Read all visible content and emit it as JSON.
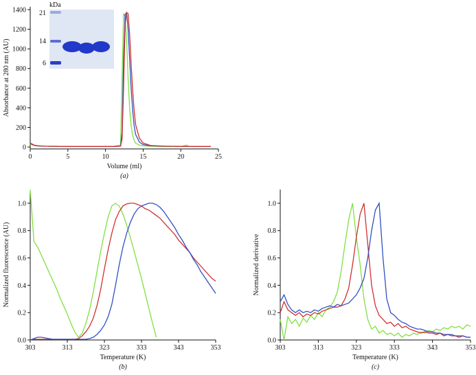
{
  "chart_data": [
    {
      "type": "line",
      "x_label": "Volume (ml)",
      "y_label": "Absorbance at 280 nm (AU)",
      "caption": "(a)",
      "xlim": [
        0,
        25
      ],
      "ylim": [
        -20,
        1430
      ],
      "xticks": [
        0,
        5,
        10,
        15,
        20,
        25
      ],
      "yticks": [
        0,
        200,
        400,
        600,
        800,
        1000,
        1200,
        1400
      ],
      "inset": {
        "unit_label": "kDa",
        "markers": [
          21,
          14,
          6
        ]
      },
      "x": [
        0,
        0.5,
        1,
        2,
        5,
        10,
        11,
        12,
        12.2,
        12.4,
        12.6,
        12.8,
        13,
        13.2,
        13.4,
        13.6,
        13.8,
        14,
        14.5,
        15,
        16,
        18,
        20,
        20.8,
        21,
        22,
        24
      ],
      "series": [
        {
          "name": "green",
          "color": "#80e040",
          "values": [
            30,
            15,
            10,
            8,
            5,
            5,
            5,
            20,
            700,
            1360,
            1330,
            1100,
            700,
            400,
            220,
            120,
            70,
            40,
            20,
            12,
            8,
            5,
            5,
            20,
            6,
            5,
            5
          ]
        },
        {
          "name": "blue",
          "color": "#3050c0",
          "values": [
            40,
            20,
            12,
            8,
            5,
            5,
            5,
            8,
            150,
            900,
            1350,
            1370,
            1200,
            900,
            600,
            380,
            220,
            130,
            50,
            25,
            12,
            8,
            6,
            6,
            6,
            5,
            5
          ]
        },
        {
          "name": "red",
          "color": "#d03030",
          "values": [
            35,
            18,
            12,
            8,
            5,
            5,
            5,
            8,
            80,
            600,
            1250,
            1370,
            1360,
            1150,
            850,
            580,
            380,
            230,
            90,
            40,
            15,
            8,
            6,
            6,
            6,
            5,
            5
          ]
        }
      ]
    },
    {
      "type": "line",
      "x_label": "Temperature (K)",
      "y_label": "Normalized fluorescence (AU)",
      "caption": "(b)",
      "xlim": [
        303,
        353
      ],
      "ylim": [
        0,
        1.1
      ],
      "xticks": [
        303,
        313,
        323,
        333,
        343,
        353
      ],
      "yticks": [
        {
          "value": 0,
          "label": "0.0"
        },
        0.2,
        0.4,
        0.6,
        0.8,
        {
          "value": 1,
          "label": "1.0"
        }
      ],
      "x": [
        303,
        304,
        305,
        306,
        307,
        308,
        309,
        310,
        311,
        312,
        313,
        314,
        315,
        316,
        317,
        318,
        319,
        320,
        321,
        322,
        323,
        324,
        325,
        326,
        327,
        328,
        329,
        330,
        331,
        332,
        333,
        334,
        335,
        336,
        337,
        338,
        339,
        340,
        341,
        342,
        343,
        344,
        345,
        346,
        347,
        348,
        349,
        350,
        351,
        352,
        353
      ],
      "series": [
        {
          "name": "green",
          "color": "#80e040",
          "values": [
            1.1,
            0.72,
            0.68,
            0.62,
            0.56,
            0.5,
            0.44,
            0.38,
            0.31,
            0.25,
            0.19,
            0.12,
            0.06,
            0.02,
            0.05,
            0.12,
            0.22,
            0.35,
            0.5,
            0.65,
            0.78,
            0.9,
            0.98,
            1.0,
            0.98,
            0.92,
            0.84,
            0.75,
            0.65,
            0.55,
            0.45,
            0.34,
            0.23,
            0.12,
            0.02,
            null,
            null,
            null,
            null,
            null,
            null,
            null,
            null,
            null,
            null,
            null,
            null,
            null,
            null,
            null,
            null
          ]
        },
        {
          "name": "red",
          "color": "#d03030",
          "values": [
            0.0,
            0.005,
            0.005,
            0.005,
            0.005,
            0.005,
            0.005,
            0.005,
            0.005,
            0.005,
            0.005,
            0.005,
            0.005,
            0.01,
            0.03,
            0.06,
            0.1,
            0.16,
            0.25,
            0.37,
            0.52,
            0.66,
            0.78,
            0.88,
            0.94,
            0.98,
            0.995,
            1.0,
            1.0,
            0.99,
            0.98,
            0.96,
            0.95,
            0.93,
            0.91,
            0.89,
            0.86,
            0.83,
            0.8,
            0.77,
            0.73,
            0.7,
            0.67,
            0.64,
            0.6,
            0.57,
            0.54,
            0.51,
            0.48,
            0.45,
            0.43
          ]
        },
        {
          "name": "blue",
          "color": "#3050c0",
          "values": [
            0.0,
            0.01,
            0.02,
            0.02,
            0.015,
            0.01,
            0.005,
            0.005,
            0.005,
            0.005,
            0.005,
            0.005,
            0.005,
            0.005,
            0.005,
            0.005,
            0.01,
            0.02,
            0.04,
            0.07,
            0.11,
            0.17,
            0.26,
            0.4,
            0.55,
            0.68,
            0.78,
            0.86,
            0.92,
            0.96,
            0.98,
            0.99,
            1.0,
            1.0,
            0.99,
            0.97,
            0.94,
            0.9,
            0.86,
            0.82,
            0.77,
            0.73,
            0.68,
            0.64,
            0.59,
            0.55,
            0.5,
            0.46,
            0.42,
            0.38,
            0.34
          ]
        }
      ]
    },
    {
      "type": "line",
      "x_label": "Temperature (K)",
      "y_label": "Normalized derivative",
      "caption": "(c)",
      "xlim": [
        303,
        353
      ],
      "ylim": [
        0,
        1.1
      ],
      "xticks": [
        303,
        313,
        323,
        333,
        343,
        353
      ],
      "yticks": [
        {
          "value": 0,
          "label": "0.0"
        },
        0.2,
        0.4,
        0.6,
        0.8,
        {
          "value": 1,
          "label": "1.0"
        }
      ],
      "x": [
        303,
        304,
        305,
        306,
        307,
        308,
        309,
        310,
        311,
        312,
        313,
        314,
        315,
        316,
        317,
        318,
        319,
        320,
        321,
        322,
        323,
        324,
        325,
        326,
        327,
        328,
        329,
        330,
        331,
        332,
        333,
        334,
        335,
        336,
        337,
        338,
        339,
        340,
        341,
        342,
        343,
        344,
        345,
        346,
        347,
        348,
        349,
        350,
        351,
        352,
        353
      ],
      "series": [
        {
          "name": "green",
          "color": "#80e040",
          "values": [
            0.15,
            0.0,
            0.17,
            0.12,
            0.15,
            0.1,
            0.16,
            0.13,
            0.18,
            0.15,
            0.2,
            0.17,
            0.22,
            0.24,
            0.28,
            0.35,
            0.5,
            0.7,
            0.88,
            1.0,
            0.75,
            0.55,
            0.3,
            0.15,
            0.08,
            0.1,
            0.05,
            0.07,
            0.04,
            0.05,
            0.03,
            0.05,
            0.02,
            0.04,
            0.03,
            0.05,
            0.04,
            0.06,
            0.05,
            0.07,
            0.06,
            0.08,
            0.07,
            0.09,
            0.08,
            0.1,
            0.09,
            0.1,
            0.08,
            0.11,
            0.1
          ]
        },
        {
          "name": "red",
          "color": "#d03030",
          "values": [
            0.2,
            0.28,
            0.22,
            0.2,
            0.18,
            0.2,
            0.17,
            0.19,
            0.18,
            0.2,
            0.19,
            0.21,
            0.22,
            0.23,
            0.24,
            0.24,
            0.25,
            0.3,
            0.38,
            0.55,
            0.75,
            0.92,
            1.0,
            0.7,
            0.4,
            0.25,
            0.18,
            0.15,
            0.12,
            0.13,
            0.1,
            0.12,
            0.09,
            0.1,
            0.08,
            0.07,
            0.06,
            0.05,
            0.06,
            0.05,
            0.05,
            0.04,
            0.05,
            0.03,
            0.04,
            0.03,
            0.03,
            0.02,
            0.03,
            0.02,
            0.02
          ]
        },
        {
          "name": "blue",
          "color": "#3050c0",
          "values": [
            0.28,
            0.33,
            0.26,
            0.22,
            0.2,
            0.22,
            0.2,
            0.21,
            0.2,
            0.22,
            0.21,
            0.23,
            0.24,
            0.25,
            0.24,
            0.26,
            0.25,
            0.26,
            0.27,
            0.3,
            0.33,
            0.38,
            0.45,
            0.6,
            0.8,
            0.95,
            1.0,
            0.6,
            0.3,
            0.2,
            0.18,
            0.15,
            0.13,
            0.12,
            0.1,
            0.09,
            0.08,
            0.08,
            0.07,
            0.06,
            0.06,
            0.05,
            0.05,
            0.04,
            0.04,
            0.04,
            0.03,
            0.03,
            0.03,
            0.02,
            0.02
          ]
        }
      ]
    }
  ]
}
